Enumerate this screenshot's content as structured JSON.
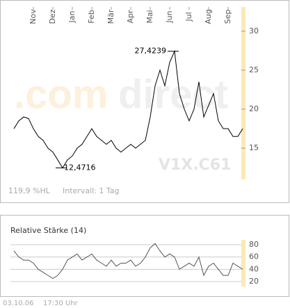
{
  "chart_data": [
    {
      "type": "line",
      "categories": [
        null,
        null,
        null,
        null,
        "Nov",
        null,
        null,
        null,
        "Dez",
        null,
        null,
        null,
        "Jan",
        null,
        null,
        null,
        "Feb",
        null,
        null,
        null,
        "Mär",
        null,
        null,
        null,
        "Apr",
        null,
        null,
        null,
        "Mai",
        null,
        null,
        null,
        "Jun",
        null,
        null,
        null,
        "Jul",
        null,
        null,
        null,
        "Aug",
        null,
        null,
        null,
        "Sep",
        null,
        null,
        null
      ],
      "values": [
        17.5,
        18.5,
        19,
        18.8,
        17.5,
        16.5,
        16,
        15,
        14.5,
        13.5,
        12.4716,
        13.5,
        14,
        15,
        15.5,
        16.5,
        17.5,
        16.5,
        16,
        15.5,
        16,
        15,
        14.5,
        15,
        15.5,
        15,
        15.5,
        16,
        19,
        23,
        25,
        23,
        26,
        27.4239,
        22,
        20,
        18.5,
        20,
        23.5,
        19,
        20.5,
        22,
        18.5,
        17.5,
        17.5,
        16.5,
        16.5,
        17.5
      ],
      "value_labels": [
        null,
        null,
        null,
        null,
        null,
        null,
        null,
        null,
        null,
        null,
        "12,4716",
        null,
        null,
        null,
        null,
        null,
        null,
        null,
        null,
        null,
        null,
        null,
        null,
        null,
        null,
        null,
        null,
        null,
        null,
        null,
        null,
        null,
        null,
        "27,4239",
        null,
        null,
        null,
        null,
        null,
        null,
        null,
        null,
        null,
        null,
        null,
        null,
        null,
        null
      ],
      "color": "#000000",
      "ylim": [
        11,
        33.1
      ],
      "yticks": [
        15,
        20,
        25,
        30
      ],
      "grid": false
    },
    {
      "type": "line",
      "title": "Relative Stärke (14)",
      "values": [
        70,
        60,
        55,
        55,
        50,
        40,
        35,
        30,
        25,
        30,
        40,
        55,
        60,
        65,
        55,
        60,
        65,
        55,
        50,
        45,
        55,
        45,
        50,
        50,
        55,
        45,
        50,
        60,
        75,
        82,
        70,
        60,
        65,
        60,
        40,
        45,
        50,
        45,
        60,
        30,
        45,
        50,
        40,
        30,
        30,
        50,
        45,
        40
      ],
      "color": "#555555",
      "ylim": [
        12,
        88
      ],
      "yticks": [
        20,
        40,
        60,
        80
      ],
      "grid": true
    }
  ],
  "watermark": {
    "com": ".com",
    "direct": "direct",
    "symbol": "V1X.C61"
  },
  "footer": {
    "range": "119,9 %HL",
    "interval": "Intervall: 1 Tag",
    "date": "03.10.06",
    "time": "17:30 Uhr"
  }
}
